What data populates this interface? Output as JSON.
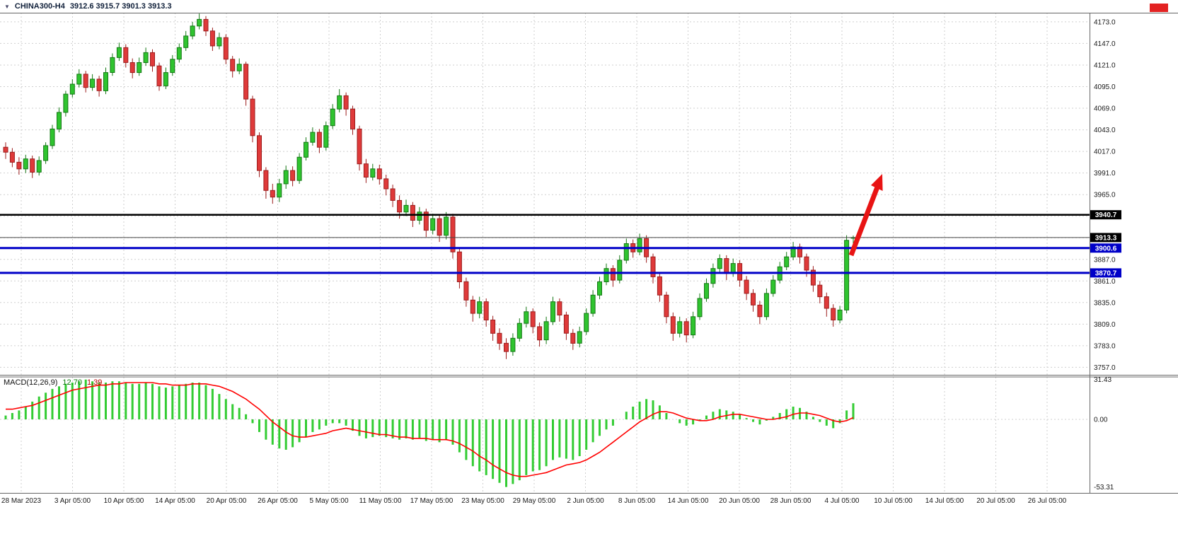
{
  "window": {
    "symbol_line": {
      "dropdown_icon": "▼",
      "symbol": "CHINA300-H4",
      "ohlc": "3912.6 3915.7 3901.3 3913.3"
    },
    "red_marker_color": "#e32222"
  },
  "chart_data": {
    "type": "candlestick",
    "title": "CHINA300-H4",
    "symbol": "CHINA300",
    "timeframe": "H4",
    "current_bar_ohlc": [
      3912.6,
      3915.7,
      3901.3,
      3913.3
    ],
    "price_panel": {
      "ylim": [
        3748,
        4184
      ],
      "ticks": [
        4173,
        4147,
        4121,
        4095,
        4069,
        4043,
        4017,
        3991,
        3965,
        3939,
        3913,
        3887,
        3861,
        3835,
        3809,
        3783,
        3757
      ],
      "hidden_tick_labels": [
        3939,
        3913
      ],
      "grid": true
    },
    "levels": [
      {
        "value": 3940.7,
        "label": "3940.7",
        "color": "#000000",
        "width": 2.5
      },
      {
        "value": 3900.6,
        "label": "3900.6",
        "color": "#0000c8",
        "width": 3
      },
      {
        "value": 3870.7,
        "label": "3870.7",
        "color": "#0000c8",
        "width": 3
      }
    ],
    "current_price": {
      "value": 3913.3,
      "label": "3913.3"
    },
    "time_labels": [
      "28 Mar 2023",
      "3 Apr 05:00",
      "10 Apr 05:00",
      "14 Apr 05:00",
      "20 Apr 05:00",
      "26 Apr 05:00",
      "5 May 05:00",
      "11 May 05:00",
      "17 May 05:00",
      "23 May 05:00",
      "29 May 05:00",
      "2 Jun 05:00",
      "8 Jun 05:00",
      "14 Jun 05:00",
      "20 Jun 05:00",
      "28 Jun 05:00",
      "4 Jul 05:00",
      "10 Jul 05:00",
      "14 Jul 05:00",
      "20 Jul 05:00",
      "26 Jul 05:00"
    ],
    "candles": [
      [
        4022,
        4028,
        4008,
        4016
      ],
      [
        4016,
        4021,
        3998,
        4004
      ],
      [
        4004,
        4010,
        3989,
        3996
      ],
      [
        3996,
        4013,
        3991,
        4008
      ],
      [
        4008,
        4012,
        3985,
        3992
      ],
      [
        3992,
        4011,
        3988,
        4006
      ],
      [
        4006,
        4028,
        4002,
        4024
      ],
      [
        4024,
        4049,
        4020,
        4044
      ],
      [
        4044,
        4070,
        4040,
        4064
      ],
      [
        4064,
        4090,
        4059,
        4086
      ],
      [
        4086,
        4104,
        4082,
        4098
      ],
      [
        4098,
        4116,
        4094,
        4110
      ],
      [
        4110,
        4114,
        4088,
        4094
      ],
      [
        4094,
        4110,
        4090,
        4104
      ],
      [
        4104,
        4108,
        4083,
        4090
      ],
      [
        4090,
        4118,
        4086,
        4112
      ],
      [
        4112,
        4135,
        4108,
        4130
      ],
      [
        4130,
        4148,
        4126,
        4142
      ],
      [
        4142,
        4146,
        4118,
        4124
      ],
      [
        4124,
        4129,
        4105,
        4112
      ],
      [
        4112,
        4130,
        4108,
        4124
      ],
      [
        4124,
        4142,
        4120,
        4136
      ],
      [
        4136,
        4140,
        4113,
        4120
      ],
      [
        4120,
        4124,
        4090,
        4096
      ],
      [
        4096,
        4118,
        4092,
        4112
      ],
      [
        4112,
        4133,
        4108,
        4128
      ],
      [
        4128,
        4147,
        4124,
        4142
      ],
      [
        4142,
        4162,
        4138,
        4156
      ],
      [
        4156,
        4173,
        4152,
        4168
      ],
      [
        4168,
        4183,
        4164,
        4176
      ],
      [
        4176,
        4180,
        4156,
        4162
      ],
      [
        4162,
        4166,
        4138,
        4144
      ],
      [
        4144,
        4160,
        4140,
        4154
      ],
      [
        4154,
        4158,
        4122,
        4128
      ],
      [
        4128,
        4132,
        4106,
        4114
      ],
      [
        4114,
        4129,
        4110,
        4122
      ],
      [
        4122,
        4125,
        4072,
        4080
      ],
      [
        4080,
        4084,
        4028,
        4036
      ],
      [
        4036,
        4040,
        3986,
        3994
      ],
      [
        3994,
        3998,
        3960,
        3970
      ],
      [
        3970,
        3978,
        3954,
        3962
      ],
      [
        3962,
        3984,
        3956,
        3978
      ],
      [
        3978,
        4000,
        3972,
        3994
      ],
      [
        3994,
        3999,
        3975,
        3982
      ],
      [
        3982,
        4015,
        3978,
        4010
      ],
      [
        4010,
        4034,
        4006,
        4028
      ],
      [
        4028,
        4046,
        4024,
        4040
      ],
      [
        4040,
        4044,
        4015,
        4022
      ],
      [
        4022,
        4053,
        4018,
        4048
      ],
      [
        4048,
        4074,
        4044,
        4068
      ],
      [
        4068,
        4092,
        4064,
        4084
      ],
      [
        4084,
        4088,
        4060,
        4068
      ],
      [
        4068,
        4072,
        4037,
        4044
      ],
      [
        4044,
        4048,
        3994,
        4002
      ],
      [
        4002,
        4008,
        3979,
        3986
      ],
      [
        3986,
        4002,
        3982,
        3996
      ],
      [
        3996,
        4001,
        3977,
        3984
      ],
      [
        3984,
        3989,
        3964,
        3972
      ],
      [
        3972,
        3977,
        3950,
        3958
      ],
      [
        3958,
        3964,
        3936,
        3944
      ],
      [
        3944,
        3959,
        3939,
        3952
      ],
      [
        3952,
        3956,
        3926,
        3934
      ],
      [
        3934,
        3950,
        3929,
        3944
      ],
      [
        3944,
        3948,
        3914,
        3922
      ],
      [
        3922,
        3942,
        3917,
        3936
      ],
      [
        3936,
        3940,
        3908,
        3916
      ],
      [
        3916,
        3944,
        3911,
        3938
      ],
      [
        3938,
        3942,
        3888,
        3896
      ],
      [
        3896,
        3900,
        3852,
        3860
      ],
      [
        3860,
        3865,
        3830,
        3838
      ],
      [
        3838,
        3843,
        3812,
        3822
      ],
      [
        3822,
        3842,
        3816,
        3836
      ],
      [
        3836,
        3840,
        3806,
        3814
      ],
      [
        3814,
        3819,
        3789,
        3798
      ],
      [
        3798,
        3804,
        3778,
        3786
      ],
      [
        3786,
        3792,
        3767,
        3776
      ],
      [
        3776,
        3798,
        3771,
        3792
      ],
      [
        3792,
        3816,
        3788,
        3810
      ],
      [
        3810,
        3830,
        3805,
        3824
      ],
      [
        3824,
        3828,
        3798,
        3806
      ],
      [
        3806,
        3811,
        3782,
        3790
      ],
      [
        3790,
        3818,
        3785,
        3812
      ],
      [
        3812,
        3842,
        3808,
        3836
      ],
      [
        3836,
        3840,
        3812,
        3820
      ],
      [
        3820,
        3824,
        3790,
        3798
      ],
      [
        3798,
        3803,
        3778,
        3786
      ],
      [
        3786,
        3806,
        3781,
        3800
      ],
      [
        3800,
        3828,
        3796,
        3822
      ],
      [
        3822,
        3850,
        3818,
        3844
      ],
      [
        3844,
        3866,
        3839,
        3860
      ],
      [
        3860,
        3882,
        3856,
        3876
      ],
      [
        3876,
        3880,
        3854,
        3862
      ],
      [
        3862,
        3892,
        3858,
        3886
      ],
      [
        3886,
        3912,
        3882,
        3906
      ],
      [
        3906,
        3911,
        3889,
        3896
      ],
      [
        3896,
        3918,
        3892,
        3912
      ],
      [
        3912,
        3916,
        3883,
        3890
      ],
      [
        3890,
        3894,
        3858,
        3866
      ],
      [
        3866,
        3870,
        3836,
        3844
      ],
      [
        3844,
        3848,
        3810,
        3818
      ],
      [
        3818,
        3823,
        3789,
        3798
      ],
      [
        3798,
        3818,
        3793,
        3812
      ],
      [
        3812,
        3816,
        3787,
        3796
      ],
      [
        3796,
        3824,
        3792,
        3818
      ],
      [
        3818,
        3846,
        3814,
        3840
      ],
      [
        3840,
        3864,
        3836,
        3858
      ],
      [
        3858,
        3882,
        3853,
        3876
      ],
      [
        3876,
        3893,
        3870,
        3888
      ],
      [
        3888,
        3892,
        3862,
        3870
      ],
      [
        3870,
        3888,
        3866,
        3882
      ],
      [
        3882,
        3886,
        3854,
        3862
      ],
      [
        3862,
        3867,
        3838,
        3846
      ],
      [
        3846,
        3851,
        3824,
        3832
      ],
      [
        3832,
        3837,
        3809,
        3818
      ],
      [
        3818,
        3852,
        3814,
        3846
      ],
      [
        3846,
        3868,
        3842,
        3862
      ],
      [
        3862,
        3884,
        3858,
        3878
      ],
      [
        3878,
        3896,
        3874,
        3890
      ],
      [
        3890,
        3908,
        3886,
        3902
      ],
      [
        3902,
        3906,
        3882,
        3890
      ],
      [
        3890,
        3894,
        3866,
        3874
      ],
      [
        3874,
        3879,
        3848,
        3856
      ],
      [
        3856,
        3861,
        3834,
        3842
      ],
      [
        3842,
        3847,
        3818,
        3828
      ],
      [
        3828,
        3833,
        3806,
        3814
      ],
      [
        3814,
        3831,
        3810,
        3826
      ],
      [
        3826,
        3916,
        3822,
        3910
      ],
      [
        3912.6,
        3915.7,
        3901.3,
        3913.3
      ]
    ],
    "macd": {
      "label": "MACD(12,26,9)",
      "value_main": "12.70",
      "value_signal": "1.39",
      "ylim": [
        -58,
        34
      ],
      "axis_ticks": [
        31.43,
        0,
        -53.31
      ],
      "hist": [
        3,
        5,
        7,
        10,
        14,
        18,
        21,
        24,
        26,
        28,
        29,
        30,
        31.4,
        30,
        29,
        29,
        30,
        30,
        29,
        28,
        28,
        29,
        28,
        26,
        25,
        26,
        27,
        28,
        29,
        29,
        27,
        24,
        20,
        16,
        12,
        9,
        4,
        -3,
        -10,
        -16,
        -20,
        -23,
        -24,
        -22,
        -18,
        -14,
        -10,
        -8,
        -5,
        -3,
        -3,
        -5,
        -9,
        -13,
        -15,
        -14,
        -13,
        -14,
        -15,
        -16,
        -15,
        -16,
        -15,
        -17,
        -16,
        -18,
        -16,
        -20,
        -26,
        -32,
        -37,
        -41,
        -44,
        -47,
        -50,
        -53.3,
        -51,
        -48,
        -44,
        -41,
        -40,
        -37,
        -32,
        -30,
        -31,
        -32,
        -29,
        -24,
        -18,
        -13,
        -8,
        -5,
        0,
        6,
        10,
        14,
        16,
        15,
        11,
        5,
        0,
        -3,
        -5,
        -4,
        -1,
        3,
        6,
        8,
        7,
        6,
        4,
        1,
        -2,
        -4,
        -1,
        2,
        5,
        8,
        10,
        9,
        6,
        2,
        -2,
        -5,
        -7,
        -3,
        7,
        12.7
      ],
      "signal": [
        8,
        8,
        9,
        10,
        11,
        13,
        15,
        17,
        19,
        21,
        23,
        24,
        25,
        26,
        27,
        27,
        28,
        28,
        29,
        29,
        29,
        29,
        29,
        28,
        28,
        27,
        27,
        27,
        28,
        28,
        28,
        27,
        26,
        24,
        22,
        19,
        16,
        12,
        8,
        3,
        -2,
        -6,
        -10,
        -13,
        -14,
        -14,
        -13,
        -12,
        -11,
        -9,
        -8,
        -7,
        -8,
        -9,
        -10,
        -11,
        -12,
        -12,
        -13,
        -14,
        -14,
        -15,
        -15,
        -15,
        -16,
        -16,
        -16,
        -17,
        -19,
        -22,
        -25,
        -29,
        -32,
        -36,
        -39,
        -42,
        -44,
        -45,
        -45,
        -44,
        -43,
        -42,
        -40,
        -38,
        -36,
        -35,
        -34,
        -32,
        -29,
        -26,
        -22,
        -18,
        -14,
        -10,
        -6,
        -2,
        1,
        4,
        6,
        6,
        5,
        3,
        1,
        0,
        -1,
        -1,
        0,
        2,
        3,
        4,
        4,
        3,
        2,
        1,
        0,
        0,
        1,
        2,
        4,
        5,
        5,
        4,
        3,
        1,
        -1,
        -2,
        -1,
        1.39
      ]
    },
    "annotation_arrow": {
      "from": [
        1203,
        361
      ],
      "to": [
        1247,
        246
      ]
    },
    "colors": {
      "grid": "#cfcfcf",
      "up": "#2fc42f",
      "up_stroke": "#157815",
      "down": "#df3a3a",
      "down_stroke": "#9c1d1d",
      "macd_hist": "#33cc33",
      "macd_signal": "#ff0000",
      "current_line": "#444444",
      "current_label_bg": "#000000",
      "border": "#666666",
      "arrow": "#e81414"
    }
  }
}
